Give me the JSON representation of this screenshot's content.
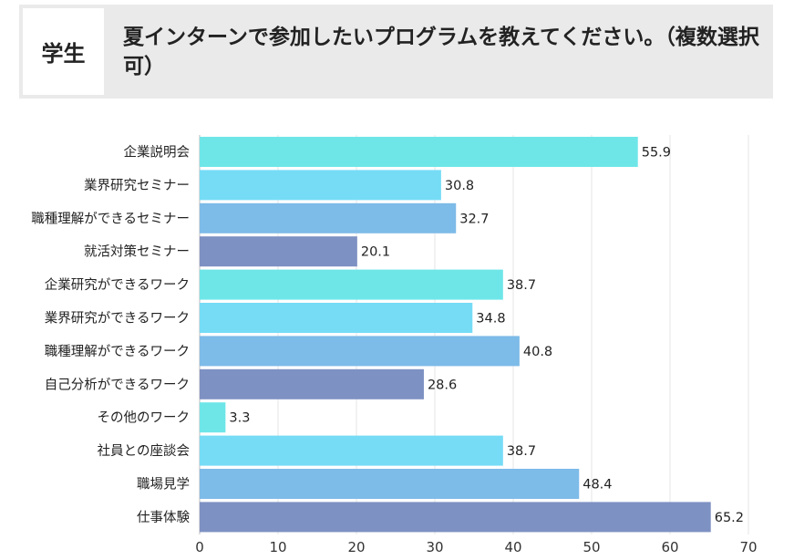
{
  "header": {
    "badge": "学生",
    "question": "夏インターンで参加したいプログラムを教えてください。（複数選択可）"
  },
  "chart_data": {
    "type": "bar",
    "orientation": "horizontal",
    "categories": [
      "企業説明会",
      "業界研究セミナー",
      "職種理解ができるセミナー",
      "就活対策セミナー",
      "企業研究ができるワーク",
      "業界研究ができるワーク",
      "職種理解ができるワーク",
      "自己分析ができるワーク",
      "その他のワーク",
      "社員との座談会",
      "職場見学",
      "仕事体験"
    ],
    "values": [
      55.9,
      30.8,
      32.7,
      20.1,
      38.7,
      34.8,
      40.8,
      28.6,
      3.3,
      38.7,
      48.4,
      65.2
    ],
    "value_labels": [
      "55.9",
      "30.8",
      "32.7",
      "20.1",
      "38.7",
      "34.8",
      "40.8",
      "28.6",
      "3.3",
      "38.7",
      "48.4",
      "65.2"
    ],
    "bar_colors": [
      "#6ee6e8",
      "#76dcf6",
      "#7dbbe8",
      "#7e91c3"
    ],
    "xlim": [
      0,
      70
    ],
    "xticks": [
      0,
      10,
      20,
      30,
      40,
      50,
      60,
      70
    ],
    "xtick_labels": [
      "0",
      "10",
      "20",
      "30",
      "40",
      "50",
      "60",
      "70"
    ],
    "grid": true
  }
}
